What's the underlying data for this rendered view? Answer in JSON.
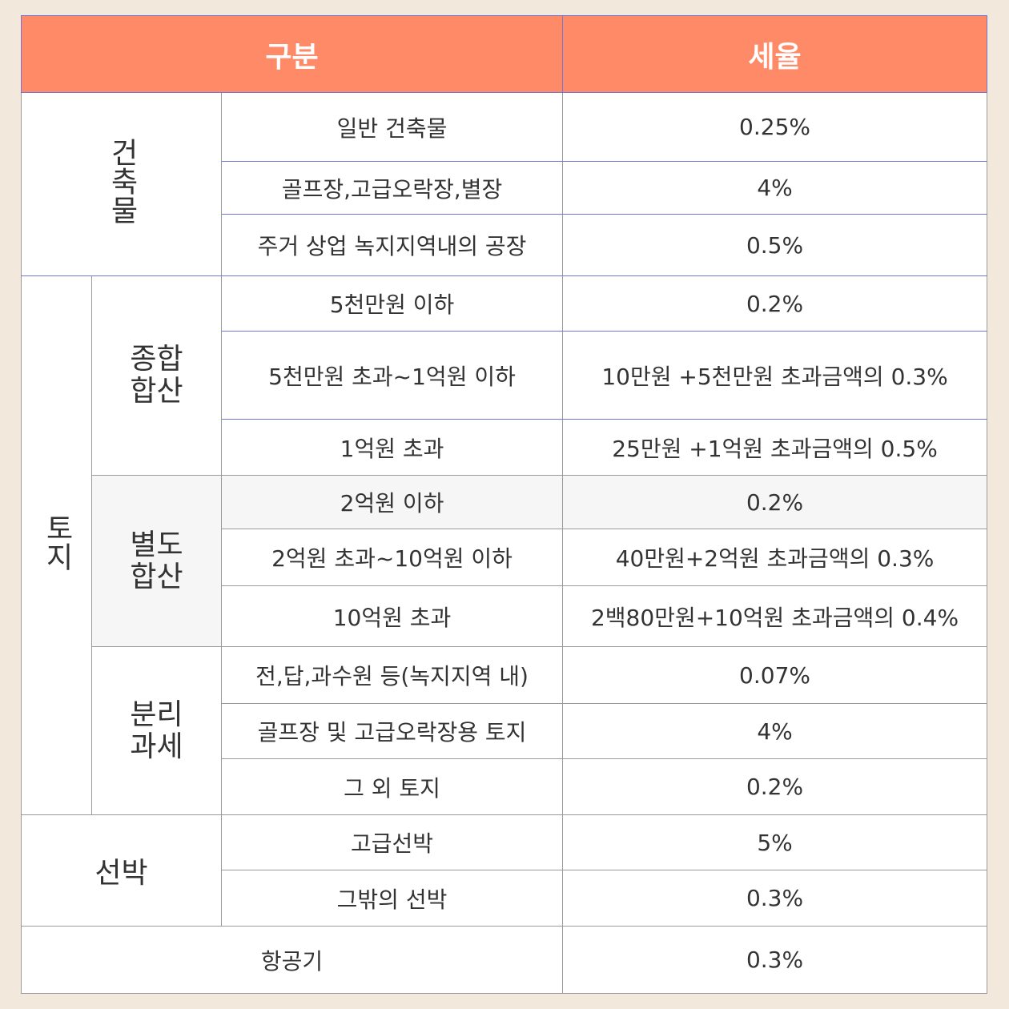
{
  "header": {
    "col1": "구분",
    "col2": "세율"
  },
  "building": {
    "label": "건축물",
    "rows": [
      {
        "desc": "일반 건축물",
        "rate": "0.25%"
      },
      {
        "desc": "골프장,고급오락장,별장",
        "rate": "4%"
      },
      {
        "desc": "주거 상업 녹지지역내의 공장",
        "rate": "0.5%"
      }
    ]
  },
  "land": {
    "label": "토지",
    "comprehensive": {
      "label_line1": "종합",
      "label_line2": "합산",
      "rows": [
        {
          "desc": "5천만원 이하",
          "rate": "0.2%"
        },
        {
          "desc": "5천만원 초과~1억원 이하",
          "rate": "10만원 +5천만원 초과금액의 0.3%"
        },
        {
          "desc": "1억원 초과",
          "rate": "25만원 +1억원 초과금액의 0.5%"
        }
      ]
    },
    "separate": {
      "label_line1": "별도",
      "label_line2": "합산",
      "rows": [
        {
          "desc": "2억원 이하",
          "rate": "0.2%"
        },
        {
          "desc": "2억원 초과~10억원 이하",
          "rate": "40만원+2억원 초과금액의 0.3%"
        },
        {
          "desc": "10억원 초과",
          "rate": "2백80만원+10억원 초과금액의 0.4%"
        }
      ]
    },
    "isolated": {
      "label_line1": "분리",
      "label_line2": "과세",
      "rows": [
        {
          "desc": "전,답,과수원 등(녹지지역 내)",
          "rate": "0.07%"
        },
        {
          "desc": "골프장 및 고급오락장용 토지",
          "rate": "4%"
        },
        {
          "desc": "그 외 토지",
          "rate": "0.2%"
        }
      ]
    }
  },
  "ship": {
    "label": "선박",
    "rows": [
      {
        "desc": "고급선박",
        "rate": "5%"
      },
      {
        "desc": "그밖의 선박",
        "rate": "0.3%"
      }
    ]
  },
  "aircraft": {
    "label": "항공기",
    "rate": "0.3%"
  }
}
